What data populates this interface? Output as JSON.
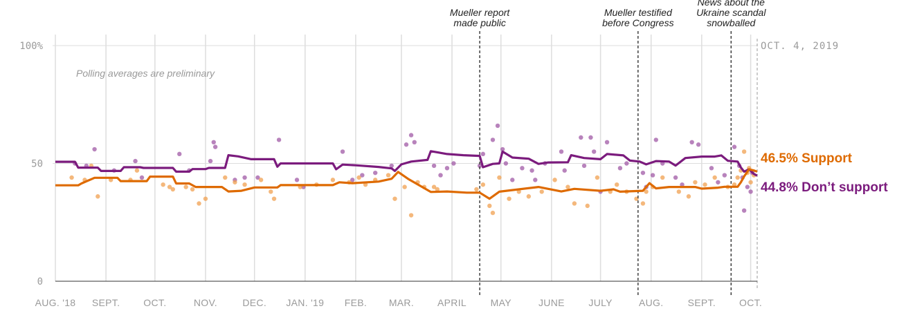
{
  "chart_data": {
    "type": "line",
    "note": "Polling averages are preliminary",
    "end_date_label": "OCT. 4, 2019",
    "ylim": [
      0,
      100
    ],
    "y_ticks": [
      {
        "value": 100,
        "label": "100%"
      },
      {
        "value": 50,
        "label": "50"
      },
      {
        "value": 0,
        "label": "0"
      }
    ],
    "x_ticks": [
      {
        "day": 0,
        "label": "AUG. '18"
      },
      {
        "day": 31,
        "label": "SEPT."
      },
      {
        "day": 61,
        "label": "OCT."
      },
      {
        "day": 92,
        "label": "NOV."
      },
      {
        "day": 122,
        "label": "DEC."
      },
      {
        "day": 153,
        "label": "JAN. '19"
      },
      {
        "day": 184,
        "label": "FEB."
      },
      {
        "day": 212,
        "label": "MAR."
      },
      {
        "day": 243,
        "label": "APRIL"
      },
      {
        "day": 273,
        "label": "MAY"
      },
      {
        "day": 304,
        "label": "JUNE"
      },
      {
        "day": 334,
        "label": "JULY"
      },
      {
        "day": 365,
        "label": "AUG."
      },
      {
        "day": 396,
        "label": "SEPT."
      },
      {
        "day": 426,
        "label": "OCT."
      }
    ],
    "x_max_day": 430,
    "events": [
      {
        "day": 260,
        "lines": [
          "Mueller report",
          "made public"
        ]
      },
      {
        "day": 357,
        "lines": [
          "Mueller testified",
          "before Congress"
        ]
      },
      {
        "day": 414,
        "lines": [
          "News about the",
          "Ukraine scandal",
          "snowballed"
        ]
      }
    ],
    "series": [
      {
        "name": "Don’t support",
        "color": "#7b1b7d",
        "dot_color": "#a05aa5",
        "final_value": 44.8,
        "label": "44.8% Don’t support",
        "line": [
          [
            0,
            50.7
          ],
          [
            12,
            50.7
          ],
          [
            14,
            48.2
          ],
          [
            26,
            48.2
          ],
          [
            28,
            46.8
          ],
          [
            40,
            46.8
          ],
          [
            42,
            48.4
          ],
          [
            52,
            48.4
          ],
          [
            54,
            48.1
          ],
          [
            72,
            48.1
          ],
          [
            74,
            46.5
          ],
          [
            82,
            46.5
          ],
          [
            84,
            47.6
          ],
          [
            92,
            47.6
          ],
          [
            94,
            48.1
          ],
          [
            104,
            48.1
          ],
          [
            106,
            53.5
          ],
          [
            112,
            53.0
          ],
          [
            120,
            51.8
          ],
          [
            134,
            51.8
          ],
          [
            136,
            48.6
          ],
          [
            138,
            50.0
          ],
          [
            150,
            50.0
          ],
          [
            170,
            50.0
          ],
          [
            172,
            47.5
          ],
          [
            176,
            49.5
          ],
          [
            184,
            49.2
          ],
          [
            198,
            48.5
          ],
          [
            206,
            47.9
          ],
          [
            208,
            46.8
          ],
          [
            212,
            49.6
          ],
          [
            218,
            50.8
          ],
          [
            228,
            51.5
          ],
          [
            230,
            55.2
          ],
          [
            240,
            54.0
          ],
          [
            250,
            53.5
          ],
          [
            260,
            53.2
          ],
          [
            262,
            48.4
          ],
          [
            268,
            49.8
          ],
          [
            272,
            50.0
          ],
          [
            274,
            55.0
          ],
          [
            280,
            52.5
          ],
          [
            290,
            52.0
          ],
          [
            296,
            49.8
          ],
          [
            302,
            50.4
          ],
          [
            314,
            50.5
          ],
          [
            316,
            53.5
          ],
          [
            324,
            52.3
          ],
          [
            334,
            51.8
          ],
          [
            338,
            54.0
          ],
          [
            348,
            53.4
          ],
          [
            352,
            51.2
          ],
          [
            358,
            50.8
          ],
          [
            362,
            49.6
          ],
          [
            368,
            51.0
          ],
          [
            376,
            50.8
          ],
          [
            380,
            49.1
          ],
          [
            386,
            52.3
          ],
          [
            396,
            52.9
          ],
          [
            404,
            52.9
          ],
          [
            408,
            53.4
          ],
          [
            412,
            51.1
          ],
          [
            418,
            50.8
          ],
          [
            420,
            48.3
          ],
          [
            422,
            46.5
          ],
          [
            425,
            47.5
          ],
          [
            428,
            45.5
          ],
          [
            430,
            44.8
          ]
        ],
        "dots": [
          [
            12,
            50
          ],
          [
            19,
            49
          ],
          [
            24,
            56
          ],
          [
            36,
            47
          ],
          [
            49,
            51
          ],
          [
            53,
            44
          ],
          [
            76,
            54
          ],
          [
            82,
            47
          ],
          [
            95,
            51
          ],
          [
            97,
            59
          ],
          [
            98,
            57
          ],
          [
            110,
            43
          ],
          [
            116,
            44
          ],
          [
            124,
            44
          ],
          [
            137,
            60
          ],
          [
            148,
            43
          ],
          [
            152,
            40
          ],
          [
            176,
            55
          ],
          [
            182,
            43
          ],
          [
            188,
            45
          ],
          [
            196,
            46
          ],
          [
            206,
            49
          ],
          [
            215,
            58
          ],
          [
            218,
            62
          ],
          [
            220,
            59
          ],
          [
            232,
            49
          ],
          [
            236,
            45
          ],
          [
            240,
            48
          ],
          [
            244,
            50
          ],
          [
            260,
            49
          ],
          [
            262,
            54
          ],
          [
            268,
            60
          ],
          [
            271,
            66
          ],
          [
            274,
            56
          ],
          [
            276,
            50
          ],
          [
            280,
            43
          ],
          [
            286,
            48
          ],
          [
            292,
            47
          ],
          [
            294,
            43
          ],
          [
            300,
            50
          ],
          [
            310,
            55
          ],
          [
            312,
            47
          ],
          [
            322,
            61
          ],
          [
            324,
            49
          ],
          [
            328,
            61
          ],
          [
            330,
            55
          ],
          [
            334,
            38
          ],
          [
            338,
            59
          ],
          [
            346,
            48
          ],
          [
            350,
            50
          ],
          [
            360,
            46
          ],
          [
            362,
            40
          ],
          [
            366,
            45
          ],
          [
            368,
            60
          ],
          [
            372,
            50
          ],
          [
            380,
            44
          ],
          [
            384,
            41
          ],
          [
            390,
            59
          ],
          [
            394,
            58
          ],
          [
            402,
            48
          ],
          [
            406,
            42
          ],
          [
            410,
            45
          ],
          [
            416,
            57
          ],
          [
            419,
            49
          ],
          [
            421,
            44
          ],
          [
            422,
            30
          ],
          [
            424,
            40
          ],
          [
            426,
            38
          ],
          [
            427,
            46
          ]
        ]
      },
      {
        "name": "Support",
        "color": "#de6a00",
        "dot_color": "#f0a050",
        "final_value": 46.5,
        "label": "46.5% Support",
        "line": [
          [
            0,
            40.7
          ],
          [
            14,
            40.7
          ],
          [
            16,
            41.5
          ],
          [
            24,
            43.9
          ],
          [
            38,
            43.9
          ],
          [
            40,
            42.5
          ],
          [
            56,
            42.5
          ],
          [
            58,
            44.4
          ],
          [
            72,
            44.4
          ],
          [
            74,
            41.5
          ],
          [
            82,
            41.5
          ],
          [
            86,
            40.0
          ],
          [
            102,
            40.0
          ],
          [
            106,
            38.1
          ],
          [
            114,
            38.4
          ],
          [
            122,
            39.8
          ],
          [
            136,
            39.8
          ],
          [
            138,
            40.8
          ],
          [
            170,
            40.8
          ],
          [
            174,
            42.0
          ],
          [
            182,
            41.6
          ],
          [
            198,
            42.3
          ],
          [
            206,
            43.5
          ],
          [
            210,
            46.4
          ],
          [
            216,
            43.5
          ],
          [
            230,
            37.9
          ],
          [
            240,
            38.1
          ],
          [
            252,
            37.6
          ],
          [
            260,
            37.6
          ],
          [
            266,
            35.0
          ],
          [
            272,
            38.0
          ],
          [
            296,
            40.0
          ],
          [
            310,
            38.1
          ],
          [
            318,
            39.2
          ],
          [
            334,
            38.4
          ],
          [
            342,
            39.0
          ],
          [
            346,
            38.0
          ],
          [
            360,
            38.4
          ],
          [
            364,
            41.6
          ],
          [
            368,
            39.4
          ],
          [
            376,
            40.0
          ],
          [
            392,
            40.0
          ],
          [
            396,
            39.3
          ],
          [
            406,
            39.7
          ],
          [
            410,
            40.1
          ],
          [
            418,
            40.1
          ],
          [
            420,
            42.0
          ],
          [
            422,
            44.5
          ],
          [
            425,
            47.5
          ],
          [
            428,
            47.0
          ],
          [
            430,
            46.5
          ]
        ],
        "dots": [
          [
            10,
            44
          ],
          [
            18,
            43
          ],
          [
            22,
            49
          ],
          [
            26,
            36
          ],
          [
            34,
            43
          ],
          [
            46,
            43
          ],
          [
            50,
            47
          ],
          [
            66,
            41
          ],
          [
            70,
            40
          ],
          [
            72,
            39
          ],
          [
            80,
            40
          ],
          [
            84,
            39
          ],
          [
            88,
            33
          ],
          [
            92,
            35
          ],
          [
            104,
            44
          ],
          [
            110,
            42
          ],
          [
            116,
            41
          ],
          [
            126,
            43
          ],
          [
            132,
            38
          ],
          [
            134,
            35
          ],
          [
            150,
            40
          ],
          [
            160,
            41
          ],
          [
            170,
            43
          ],
          [
            180,
            42
          ],
          [
            186,
            44
          ],
          [
            190,
            41
          ],
          [
            196,
            43
          ],
          [
            204,
            45
          ],
          [
            208,
            35
          ],
          [
            214,
            40
          ],
          [
            218,
            28
          ],
          [
            222,
            42
          ],
          [
            226,
            40
          ],
          [
            232,
            40
          ],
          [
            234,
            39
          ],
          [
            258,
            39
          ],
          [
            262,
            41
          ],
          [
            266,
            32
          ],
          [
            268,
            29
          ],
          [
            272,
            44
          ],
          [
            278,
            35
          ],
          [
            284,
            38
          ],
          [
            290,
            36
          ],
          [
            298,
            38
          ],
          [
            306,
            43
          ],
          [
            314,
            40
          ],
          [
            318,
            33
          ],
          [
            326,
            32
          ],
          [
            332,
            44
          ],
          [
            340,
            38
          ],
          [
            344,
            41
          ],
          [
            350,
            38
          ],
          [
            356,
            35
          ],
          [
            360,
            33
          ],
          [
            362,
            38
          ],
          [
            366,
            40
          ],
          [
            372,
            44
          ],
          [
            382,
            38
          ],
          [
            388,
            36
          ],
          [
            392,
            42
          ],
          [
            398,
            41
          ],
          [
            404,
            44
          ],
          [
            412,
            40
          ],
          [
            416,
            41
          ],
          [
            418,
            44
          ],
          [
            420,
            47
          ],
          [
            422,
            55
          ],
          [
            424,
            46
          ],
          [
            425,
            48
          ],
          [
            426,
            42
          ],
          [
            428,
            45
          ]
        ]
      }
    ]
  }
}
